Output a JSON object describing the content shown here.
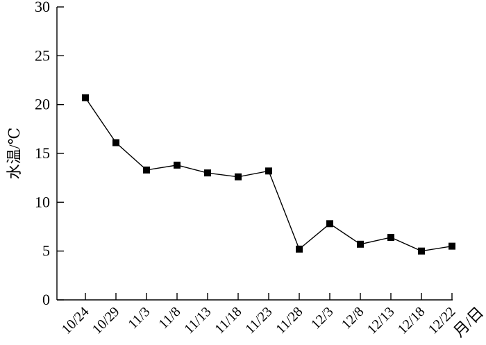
{
  "chart_data": {
    "type": "line",
    "x": [
      "10/24",
      "10/29",
      "11/3",
      "11/8",
      "11/13",
      "11/18",
      "11/23",
      "11/28",
      "12/3",
      "12/8",
      "12/13",
      "12/18",
      "12/22"
    ],
    "y": [
      20.7,
      16.1,
      13.3,
      13.8,
      13.0,
      12.6,
      13.2,
      5.2,
      7.8,
      5.7,
      6.4,
      5.0,
      5.5
    ],
    "xlabel": "月/日",
    "ylabel": "水温/℃",
    "ylim": [
      0,
      30
    ],
    "yticks": [
      0,
      5,
      10,
      15,
      20,
      25,
      30
    ],
    "grid": false,
    "marker": "square",
    "series_color": "#000000"
  }
}
